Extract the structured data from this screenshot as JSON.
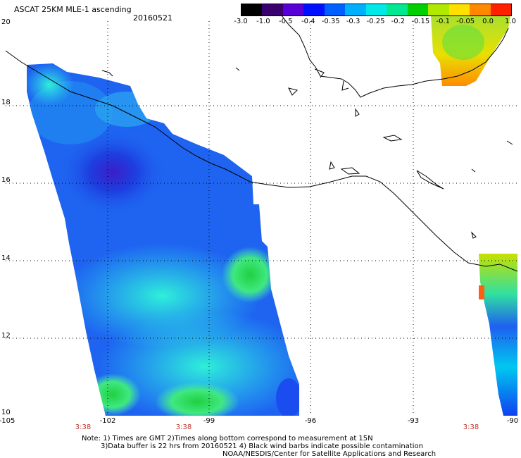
{
  "title": "ASCAT 25KM MLE-1 ascending",
  "date": "20160521",
  "colorbar": {
    "ticks": [
      "-3.0",
      "-1.0",
      "-0.5",
      "-0.4",
      "-0.35",
      "-0.3",
      "-0.25",
      "-0.2",
      "-0.15",
      "-0.1",
      "-0.05",
      "0.0",
      "1.0"
    ],
    "colors": [
      "#000000",
      "#3a006e",
      "#5800d8",
      "#0010ff",
      "#0060ff",
      "#00b0ff",
      "#00e8e8",
      "#00e890",
      "#00d000",
      "#b0e800",
      "#ffe000",
      "#ff8800",
      "#ff2000"
    ]
  },
  "axes": {
    "lon_labels": [
      "-105",
      "-102",
      "-99",
      "-96",
      "-93",
      "-90"
    ],
    "lat_labels": [
      "20",
      "18",
      "16",
      "14",
      "12",
      "10"
    ]
  },
  "time_labels": [
    "3:38",
    "3:38",
    "3:38"
  ],
  "note": {
    "line1": "Note: 1) Times are GMT 2)Times along bottom correspond to measurement at 15N",
    "line2": "3)Data buffer is 22 hrs from 20160521 4) Black wind barbs indicate possible contamination",
    "line3": "NOAA/NESDIS/Center for Satellite Applications and Research"
  }
}
